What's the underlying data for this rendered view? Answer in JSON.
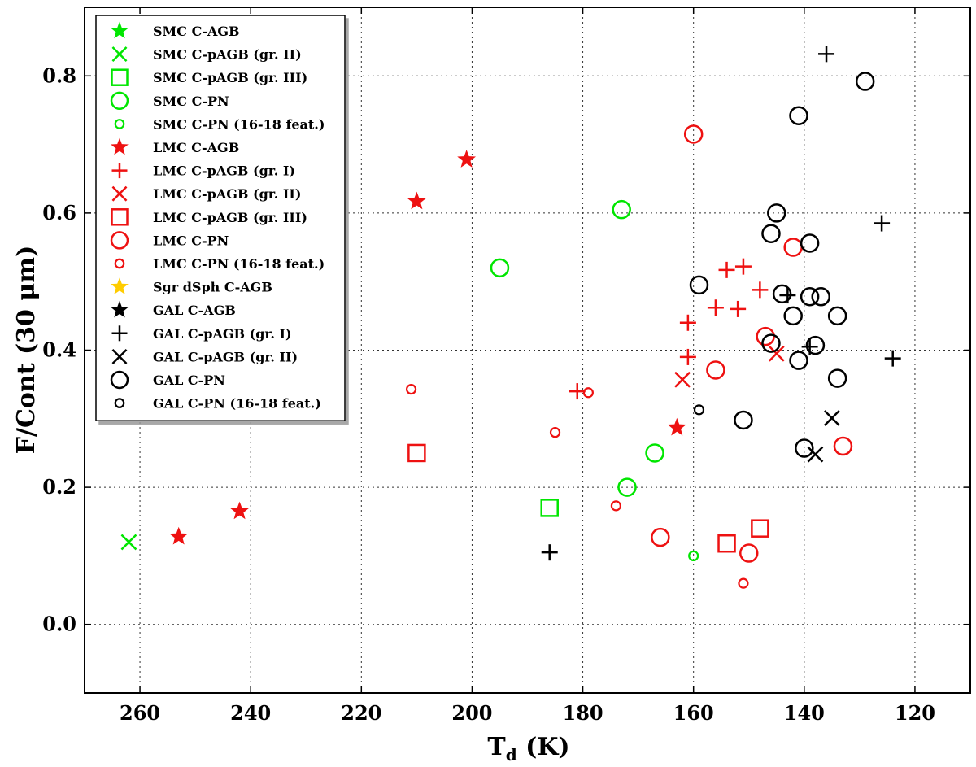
{
  "chart_data": {
    "type": "scatter",
    "title": "",
    "xlabel_main": "T",
    "xlabel_sub": "d",
    "xlabel_unit": " (K)",
    "ylabel": "F/Cont (30 μm)",
    "xlim": [
      270,
      110
    ],
    "ylim": [
      -0.1,
      0.9
    ],
    "x_ticks": [
      260,
      240,
      220,
      200,
      180,
      160,
      140,
      120
    ],
    "y_ticks": [
      0.0,
      0.2,
      0.4,
      0.6,
      0.8
    ],
    "y_tick_labels": [
      "0.0",
      "0.2",
      "0.4",
      "0.6",
      "0.8"
    ],
    "grid": true,
    "legend_position": "top-left",
    "colors": {
      "smc": "#00e600",
      "lmc": "#ee1111",
      "sgr": "#ffcc00",
      "gal": "#000000"
    },
    "series": [
      {
        "name": "SMC C-AGB",
        "marker": "star",
        "color": "#00e600",
        "points": []
      },
      {
        "name": "SMC C-pAGB (gr. II)",
        "marker": "x",
        "color": "#00e600",
        "points": [
          [
            262,
            0.12
          ]
        ]
      },
      {
        "name": "SMC C-pAGB (gr. III)",
        "marker": "square",
        "color": "#00e600",
        "points": [
          [
            186,
            0.17
          ]
        ]
      },
      {
        "name": "SMC C-PN",
        "marker": "circle",
        "color": "#00e600",
        "points": [
          [
            195,
            0.52
          ],
          [
            173,
            0.605
          ],
          [
            167,
            0.25
          ],
          [
            172,
            0.2
          ]
        ]
      },
      {
        "name": "SMC C-PN (16-18 feat.)",
        "marker": "smallcircle",
        "color": "#00e600",
        "points": [
          [
            160,
            0.1
          ]
        ]
      },
      {
        "name": "LMC C-AGB",
        "marker": "star",
        "color": "#ee1111",
        "points": [
          [
            201,
            0.678
          ],
          [
            210,
            0.617
          ],
          [
            163,
            0.287
          ],
          [
            242,
            0.165
          ],
          [
            253,
            0.128
          ]
        ]
      },
      {
        "name": "LMC C-pAGB (gr. I)",
        "marker": "plus",
        "color": "#ee1111",
        "points": [
          [
            154,
            0.517
          ],
          [
            151,
            0.522
          ],
          [
            148,
            0.488
          ],
          [
            156,
            0.462
          ],
          [
            152,
            0.46
          ],
          [
            161,
            0.44
          ],
          [
            161,
            0.39
          ],
          [
            181,
            0.34
          ]
        ]
      },
      {
        "name": "LMC C-pAGB (gr. II)",
        "marker": "x",
        "color": "#ee1111",
        "points": [
          [
            162,
            0.357
          ],
          [
            145,
            0.395
          ]
        ]
      },
      {
        "name": "LMC C-pAGB (gr. III)",
        "marker": "square",
        "color": "#ee1111",
        "points": [
          [
            210,
            0.25
          ],
          [
            154,
            0.118
          ],
          [
            148,
            0.14
          ]
        ]
      },
      {
        "name": "LMC C-PN",
        "marker": "circle",
        "color": "#ee1111",
        "points": [
          [
            160,
            0.715
          ],
          [
            142,
            0.55
          ],
          [
            147,
            0.42
          ],
          [
            156,
            0.371
          ],
          [
            133,
            0.26
          ],
          [
            166,
            0.127
          ],
          [
            150,
            0.104
          ]
        ]
      },
      {
        "name": "LMC C-PN (16-18 feat.)",
        "marker": "smallcircle",
        "color": "#ee1111",
        "points": [
          [
            211,
            0.343
          ],
          [
            179,
            0.338
          ],
          [
            185,
            0.28
          ],
          [
            174,
            0.173
          ],
          [
            151,
            0.06
          ]
        ]
      },
      {
        "name": "Sgr dSph C-AGB",
        "marker": "star",
        "color": "#ffcc00",
        "points": []
      },
      {
        "name": "GAL C-AGB",
        "marker": "star",
        "color": "#000000",
        "points": []
      },
      {
        "name": "GAL C-pAGB (gr. I)",
        "marker": "plus",
        "color": "#000000",
        "points": [
          [
            136,
            0.832
          ],
          [
            126,
            0.585
          ],
          [
            143,
            0.48
          ],
          [
            139,
            0.405
          ],
          [
            124,
            0.388
          ],
          [
            186,
            0.105
          ]
        ]
      },
      {
        "name": "GAL C-pAGB (gr. II)",
        "marker": "x",
        "color": "#000000",
        "points": [
          [
            135,
            0.301
          ],
          [
            138,
            0.248
          ]
        ]
      },
      {
        "name": "GAL C-PN",
        "marker": "circle",
        "color": "#000000",
        "points": [
          [
            129,
            0.792
          ],
          [
            141,
            0.742
          ],
          [
            145,
            0.6
          ],
          [
            146,
            0.57
          ],
          [
            139,
            0.556
          ],
          [
            159,
            0.495
          ],
          [
            144,
            0.482
          ],
          [
            139,
            0.478
          ],
          [
            137,
            0.478
          ],
          [
            142,
            0.45
          ],
          [
            134,
            0.45
          ],
          [
            146,
            0.41
          ],
          [
            138,
            0.407
          ],
          [
            141,
            0.385
          ],
          [
            134,
            0.359
          ],
          [
            151,
            0.298
          ],
          [
            140,
            0.257
          ]
        ]
      },
      {
        "name": "GAL C-PN (16-18 feat.)",
        "marker": "smallcircle",
        "color": "#000000",
        "points": [
          [
            159,
            0.313
          ]
        ]
      }
    ]
  }
}
